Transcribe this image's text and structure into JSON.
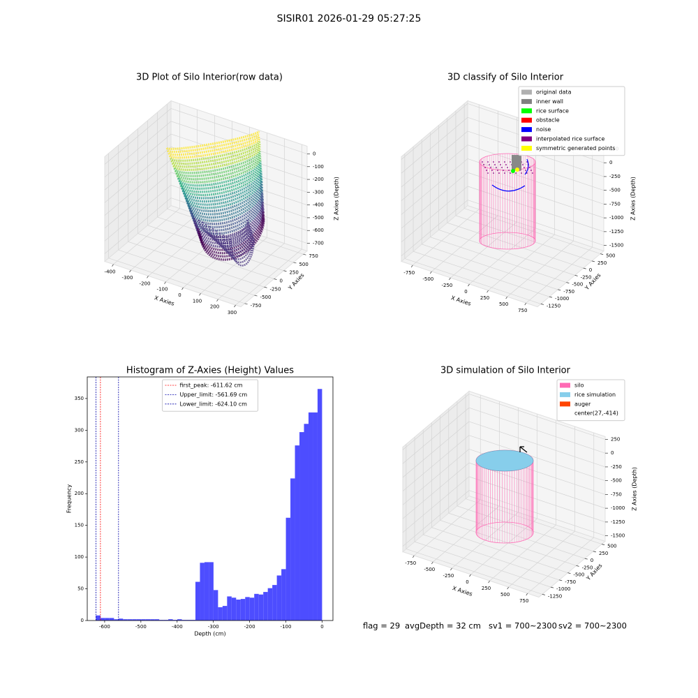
{
  "title": "SISIR01 2026-01-29 05:27:25",
  "chart_data": [
    {
      "type": "scatter3d",
      "title": "3D Plot of Silo Interior(row data)",
      "xlabel": "X Axies",
      "ylabel": "Y Axies",
      "zlabel": "Z Axies (Depth)",
      "xlim": [
        -450,
        330
      ],
      "ylim": [
        -850,
        850
      ],
      "zlim": [
        -760,
        60
      ],
      "xticks": [
        -400,
        -300,
        -200,
        -100,
        0,
        100,
        200,
        300
      ],
      "yticks": [
        -750,
        -500,
        -250,
        0,
        250,
        500,
        750
      ],
      "zticks": [
        0,
        -100,
        -200,
        -300,
        -400,
        -500,
        -600,
        -700
      ]
    },
    {
      "type": "scatter3d",
      "title": "3D classify of Silo Interior",
      "xlabel": "X Axies",
      "ylabel": "Y Axies",
      "zlabel": "Z Axies (Depth)",
      "xlim": [
        -900,
        900
      ],
      "ylim": [
        -1350,
        600
      ],
      "zlim": [
        -1600,
        300
      ],
      "xticks": [
        -750,
        -500,
        -250,
        0,
        250,
        500,
        750
      ],
      "yticks": [
        -1250,
        -1000,
        -750,
        -500,
        -250,
        0,
        250,
        500
      ],
      "zticks": [
        250,
        0,
        -250,
        -500,
        -750,
        -1000,
        -1250,
        -1500
      ],
      "legend": {
        "loc": "upper right",
        "items": [
          {
            "name": "original data",
            "color": "#b0b0b0"
          },
          {
            "name": "inner wall",
            "color": "#808080"
          },
          {
            "name": "rice surface",
            "color": "#00ff00"
          },
          {
            "name": "obstacle",
            "color": "#ff0000"
          },
          {
            "name": "noise",
            "color": "#0000ff"
          },
          {
            "name": "interpolated rice surface",
            "color": "#800080"
          },
          {
            "name": "symmetric generated points",
            "color": "#ffff00"
          }
        ]
      }
    },
    {
      "type": "histogram",
      "title": "Histogram of Z-Axies (Height) Values",
      "xlabel": "Depth (cm)",
      "ylabel": "Frequency",
      "color": "#4d4dff",
      "xlim": [
        -648,
        30
      ],
      "ylim": [
        0,
        384
      ],
      "xticks": [
        -600,
        -500,
        -400,
        -300,
        -200,
        -100,
        0
      ],
      "yticks": [
        0,
        50,
        100,
        150,
        200,
        250,
        300,
        350
      ],
      "bins": [
        -624.1,
        -611.62,
        -599.14,
        -586.66,
        -574.17,
        -561.69,
        -549.21,
        -536.73,
        -524.25,
        -511.76,
        -499.28,
        -486.8,
        -474.32,
        -461.83,
        -449.35,
        -436.87,
        -424.39,
        -411.91,
        -399.42,
        -386.94,
        -374.46,
        -361.98,
        -349.5,
        -337.01,
        -324.53,
        -312.05,
        -299.57,
        -287.09,
        -274.6,
        -262.12,
        -249.64,
        -237.16,
        -224.68,
        -212.19,
        -199.71,
        -187.23,
        -174.75,
        -162.26,
        -149.78,
        -137.3,
        -124.82,
        -112.34,
        -99.85,
        -87.37,
        -74.89,
        -62.41,
        -49.93,
        -37.44,
        -24.96,
        -12.48,
        0
      ],
      "counts": [
        8,
        4,
        4,
        4,
        2,
        3,
        2,
        2,
        2,
        2,
        2,
        2,
        2,
        2,
        1,
        1,
        2,
        1,
        2,
        1,
        1,
        1,
        61,
        91,
        92,
        92,
        48,
        21,
        23,
        38,
        36,
        33,
        34,
        37,
        36,
        42,
        41,
        45,
        51,
        56,
        71,
        81,
        162,
        224,
        276,
        297,
        310,
        328,
        328,
        365
      ],
      "vlines": [
        {
          "label": "first_peak: -611.62 cm",
          "value": -611.62,
          "color": "#ff0000"
        },
        {
          "label": "Upper_limit: -561.69 cm",
          "value": -561.69,
          "color": "#0000aa"
        },
        {
          "label": "Lower_limit: -624.10 cm",
          "value": -624.1,
          "color": "#0000aa"
        }
      ],
      "legend": {
        "loc": "upper center"
      }
    },
    {
      "type": "scatter3d",
      "title": "3D simulation of Silo Interior",
      "xlabel": "X Axies",
      "ylabel": "Y Axies",
      "zlabel": "Z Axies (Depth)",
      "xlim": [
        -900,
        900
      ],
      "ylim": [
        -1350,
        600
      ],
      "zlim": [
        -1600,
        300
      ],
      "xticks": [
        -750,
        -500,
        -250,
        0,
        250,
        500,
        750
      ],
      "yticks": [
        -1250,
        -1000,
        -750,
        -500,
        -250,
        0,
        250,
        500
      ],
      "zticks": [
        250,
        0,
        -250,
        -500,
        -750,
        -1000,
        -1250,
        -1500
      ],
      "legend": {
        "loc": "upper right",
        "items": [
          {
            "name": "silo",
            "color": "#ff69b4"
          },
          {
            "name": "rice simulation",
            "color": "#87ceeb"
          },
          {
            "name": "auger",
            "color": "#ff4500"
          },
          {
            "name": "center(27,-414)"
          }
        ]
      }
    }
  ],
  "footer": [
    "flag = 29",
    "avgDepth = 32 cm",
    "sv1 = 700~2300",
    "sv2 = 700~2300"
  ]
}
